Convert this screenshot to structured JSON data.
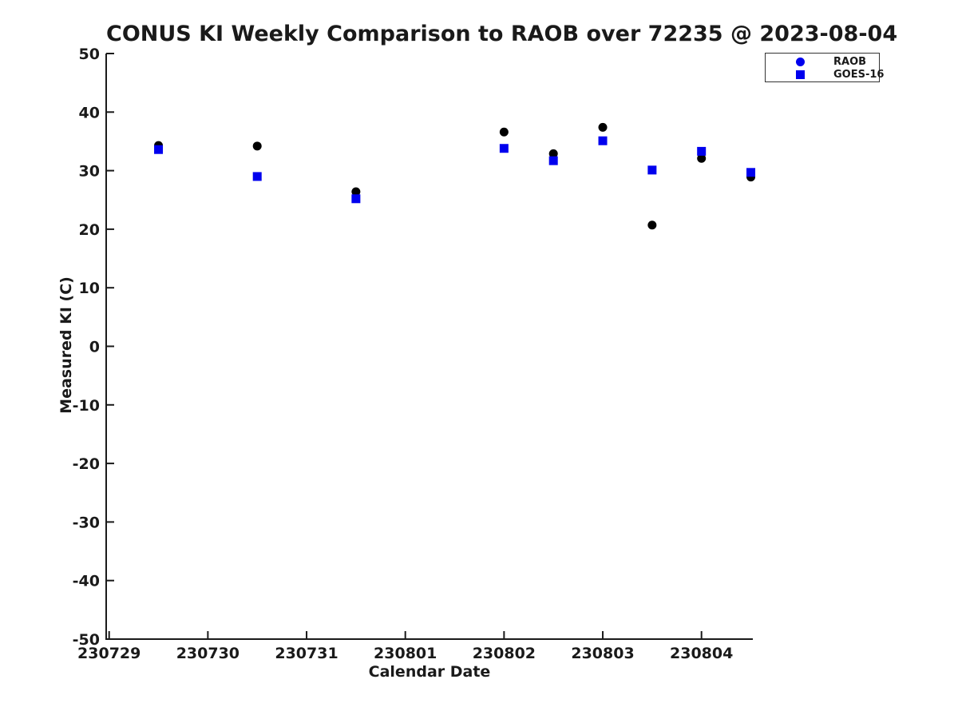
{
  "chart_data": {
    "type": "scatter",
    "title": "CONUS KI Weekly Comparison to RAOB over 72235 @ 2023-08-04",
    "xlabel": "Calendar Date",
    "ylabel": "Measured KI (C)",
    "x_tick_labels": [
      "230729",
      "230730",
      "230731",
      "230801",
      "230802",
      "230803",
      "230804"
    ],
    "x_tick_positions": [
      0,
      1,
      2,
      3,
      4,
      5,
      6
    ],
    "xlim": [
      -0.03,
      6.52
    ],
    "ylim": [
      -50,
      50
    ],
    "y_ticks": [
      50,
      40,
      30,
      20,
      10,
      0,
      -10,
      -20,
      -30,
      -40,
      -50
    ],
    "grid": false,
    "axis_color": "#1a1a1a",
    "legend": {
      "position": "top-right",
      "entries": [
        {
          "label": "RAOB",
          "marker": "circle",
          "color": "#0000ee"
        },
        {
          "label": "GOES-16",
          "marker": "square",
          "color": "#0000ee"
        }
      ]
    },
    "series": [
      {
        "name": "RAOB",
        "marker": "circle",
        "color": "#000000",
        "x": [
          0.5,
          1.5,
          2.5,
          4.0,
          4.5,
          5.0,
          5.5,
          6.0,
          6.5
        ],
        "y": [
          34.3,
          34.2,
          26.4,
          36.6,
          32.9,
          37.4,
          20.7,
          32.1,
          28.9
        ]
      },
      {
        "name": "GOES-16",
        "marker": "square",
        "color": "#0000ee",
        "x": [
          0.5,
          1.5,
          2.5,
          4.0,
          4.5,
          5.0,
          5.5,
          6.0,
          6.5
        ],
        "y": [
          33.6,
          29.0,
          25.2,
          33.8,
          31.7,
          35.1,
          30.1,
          33.3,
          29.7
        ]
      }
    ]
  }
}
